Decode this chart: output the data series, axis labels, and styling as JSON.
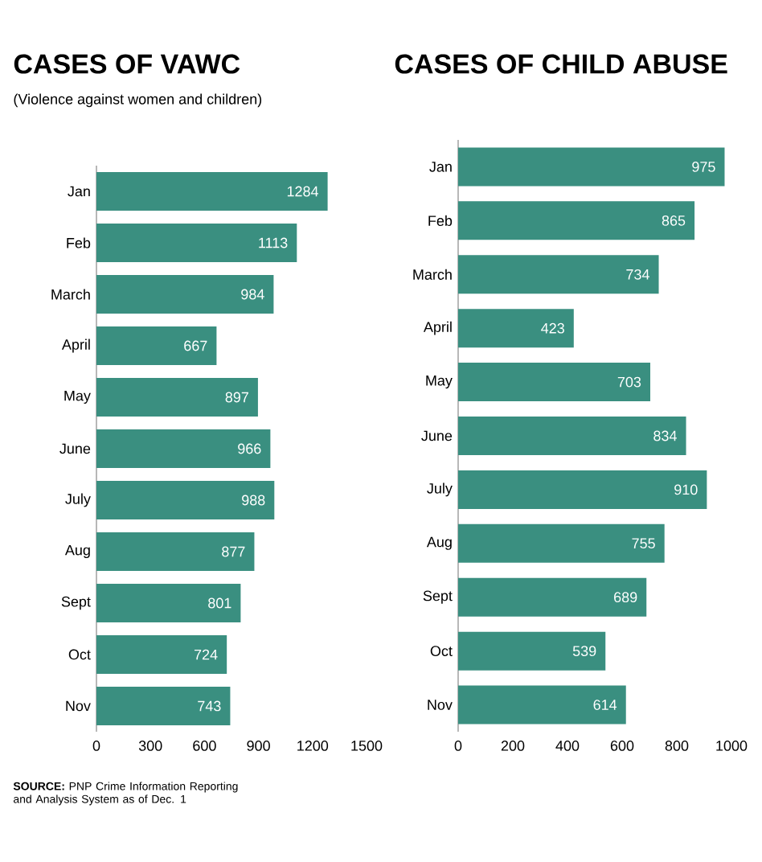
{
  "chart_data": [
    {
      "type": "bar",
      "orientation": "horizontal",
      "title": "CASES OF VAWC",
      "subtitle": "(Violence against women and children)",
      "categories": [
        "Jan",
        "Feb",
        "March",
        "April",
        "May",
        "June",
        "July",
        "Aug",
        "Sept",
        "Oct",
        "Nov"
      ],
      "values": [
        1284,
        1113,
        984,
        667,
        897,
        966,
        988,
        877,
        801,
        724,
        743
      ],
      "color": "#3a8f80",
      "xlim": [
        0,
        1500
      ],
      "xticks": [
        0,
        300,
        600,
        900,
        1200,
        1500
      ],
      "data_labels": true,
      "annotations": [
        "**SOURCE:** PNP Crime Information Reporting and Analysis System as of Dec. 1"
      ]
    },
    {
      "type": "bar",
      "orientation": "horizontal",
      "title": "CASES OF CHILD ABUSE",
      "categories": [
        "Jan",
        "Feb",
        "March",
        "April",
        "May",
        "June",
        "July",
        "Aug",
        "Sept",
        "Oct",
        "Nov"
      ],
      "values": [
        975,
        865,
        734,
        423,
        703,
        834,
        910,
        755,
        689,
        539,
        614
      ],
      "color": "#3a8f80",
      "xlim": [
        0,
        1000
      ],
      "xticks": [
        0,
        200,
        400,
        600,
        800,
        1000
      ],
      "data_labels": true
    }
  ]
}
